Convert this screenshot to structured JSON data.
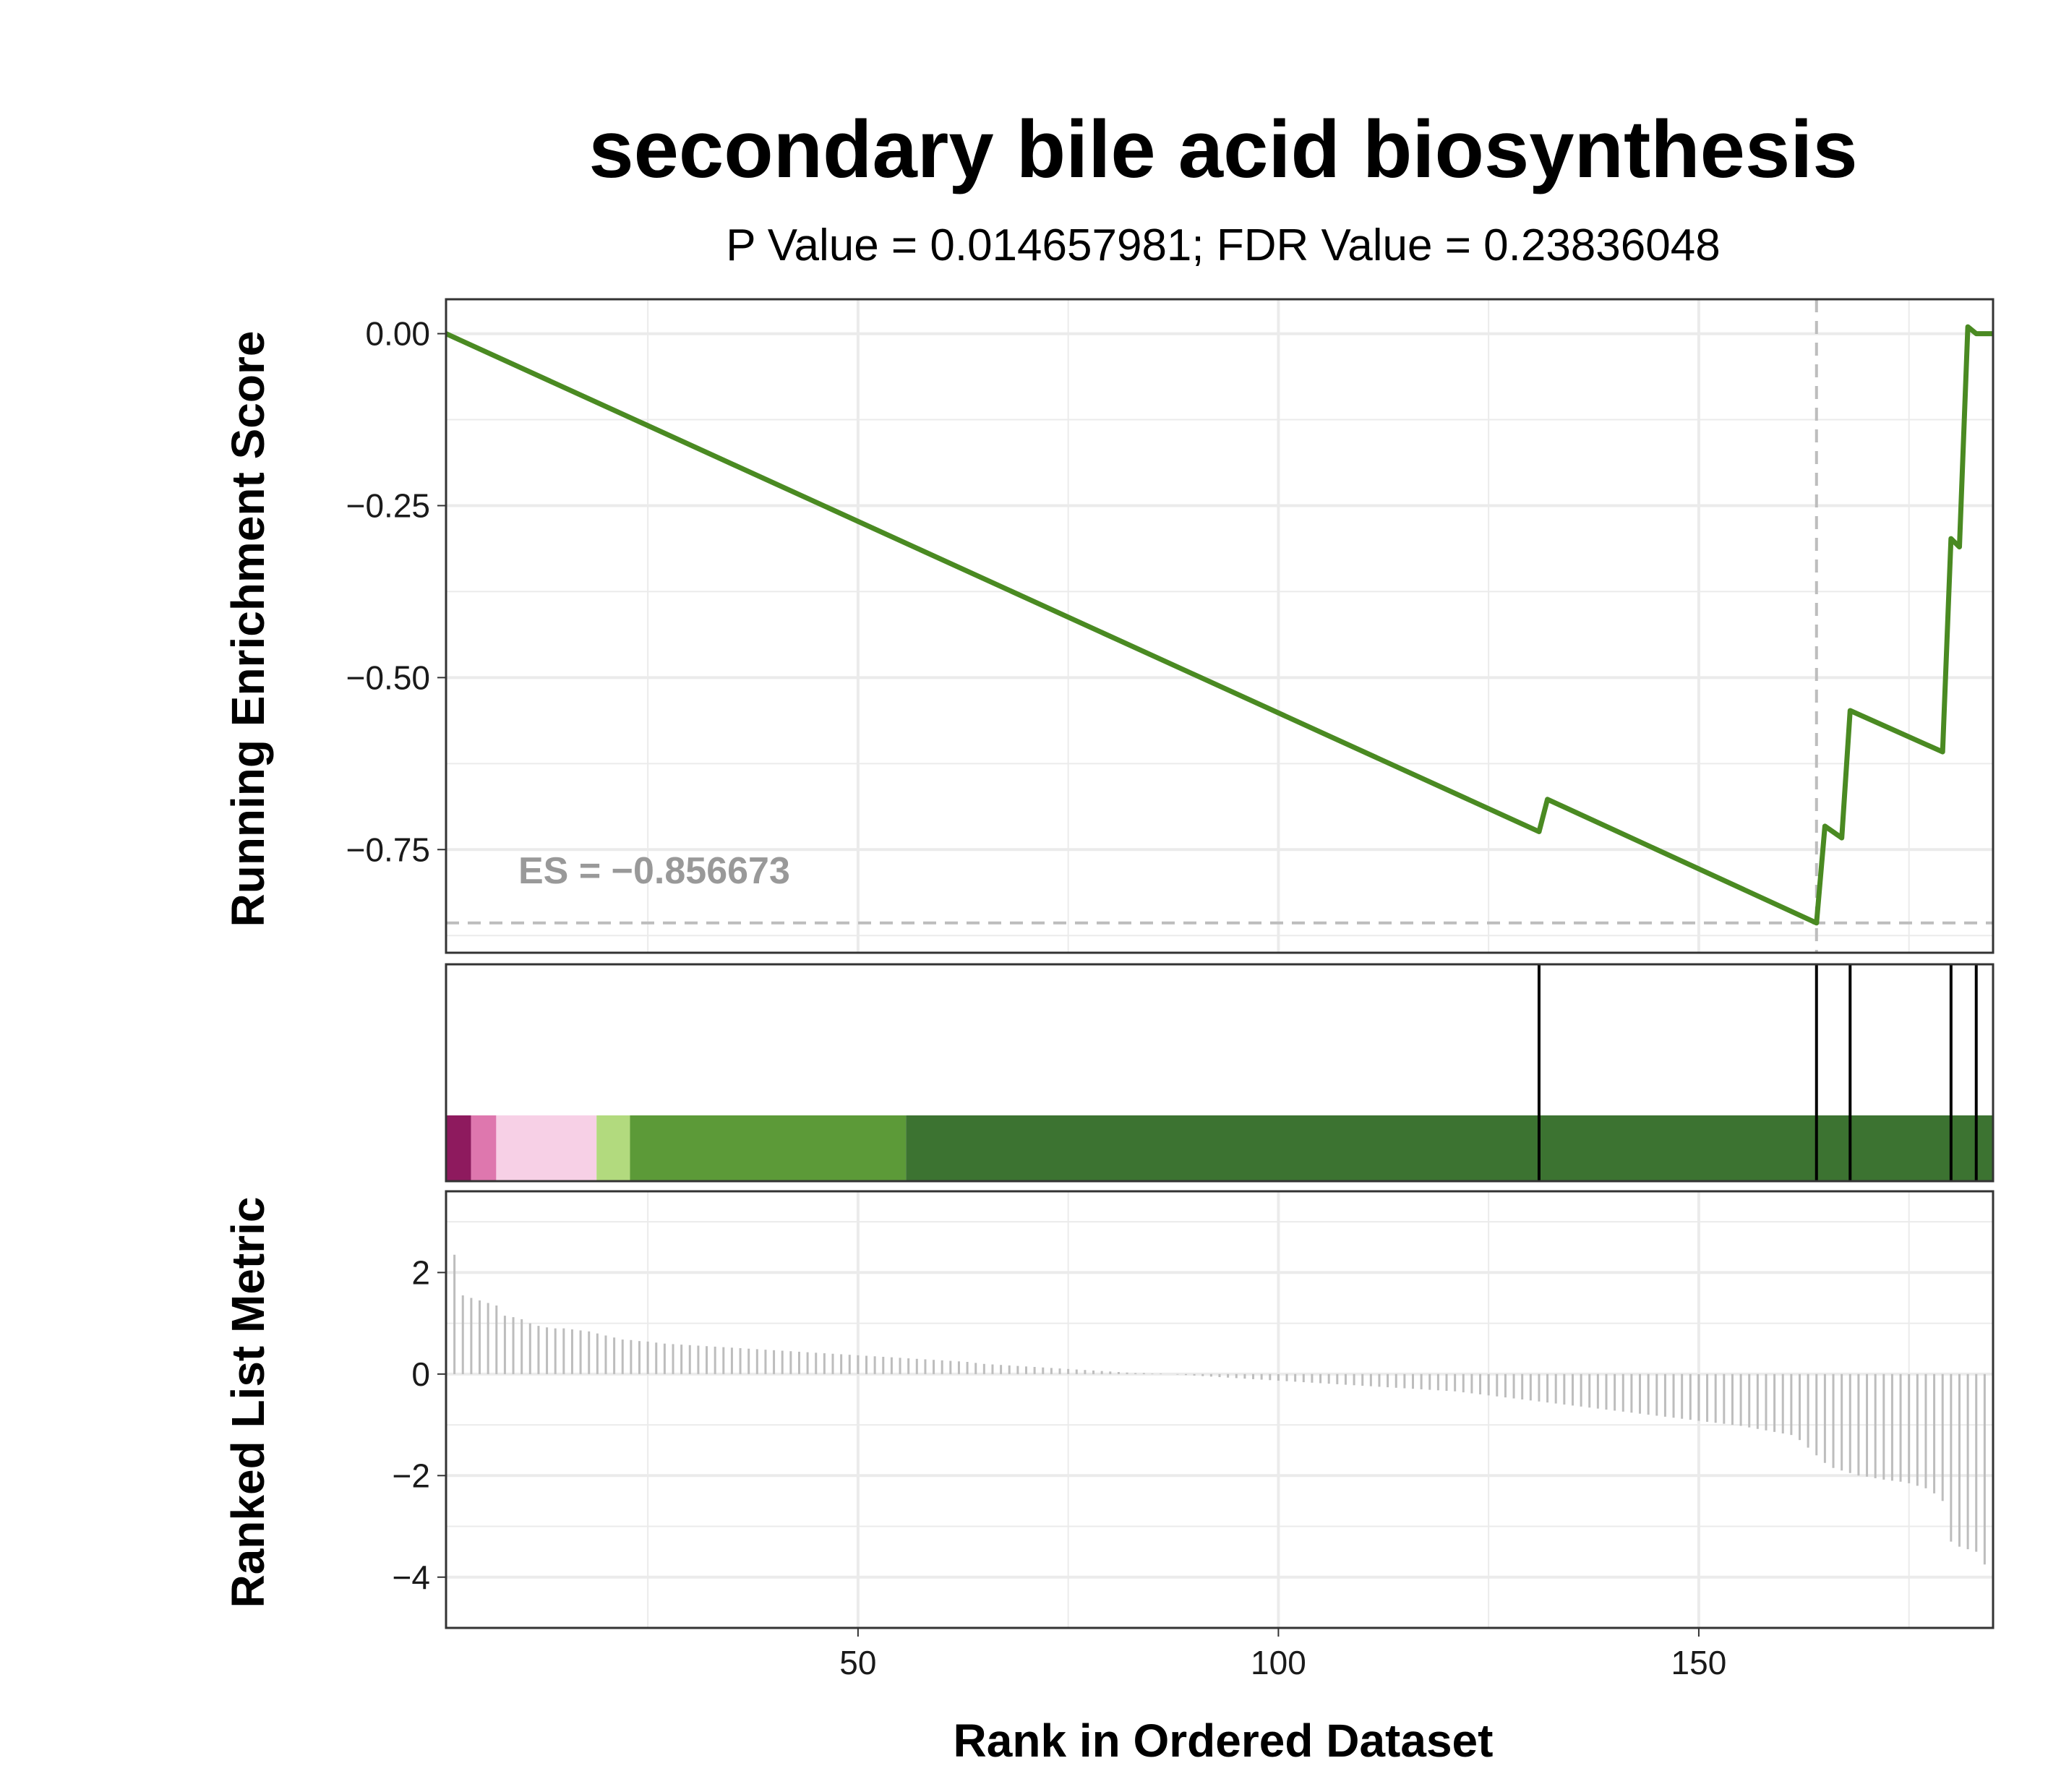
{
  "chart_data": {
    "type": "line",
    "title": "secondary bile acid biosynthesis",
    "subtitle": "P Value = 0.014657981; FDR Value = 0.23836048",
    "xlabel": "Rank in Ordered Dataset",
    "panels": {
      "running_score": {
        "ylabel": "Running Enrichment Score",
        "ylim": [
          -0.9,
          0.05
        ],
        "yticks": [
          0.0,
          -0.25,
          -0.5,
          -0.75
        ],
        "ytick_labels": [
          "0.00",
          "−0.25",
          "−0.50",
          "−0.75"
        ],
        "es_label": "ES = −0.856673",
        "es_value": -0.856673,
        "peak_rank": 164,
        "line_color": "#4a8a22",
        "series": [
          {
            "x": [
              1,
              131,
              132,
              164,
              165,
              167,
              168,
              179,
              180,
              181,
              182,
              183,
              185
            ],
            "y": [
              0.0,
              -0.724,
              -0.677,
              -0.856673,
              -0.716,
              -0.733,
              -0.548,
              -0.608,
              -0.298,
              -0.31,
              0.01,
              0.0,
              0.0
            ]
          }
        ]
      },
      "hits": {
        "positions": [
          131,
          164,
          168,
          180,
          183
        ],
        "color_bands": [
          {
            "from": 0,
            "to": 3,
            "color": "#8e1a5e"
          },
          {
            "from": 3,
            "to": 6,
            "color": "#de77ae"
          },
          {
            "from": 6,
            "to": 18,
            "color": "#f7d0e6"
          },
          {
            "from": 18,
            "to": 22,
            "color": "#b2da7e"
          },
          {
            "from": 22,
            "to": 55,
            "color": "#5c9a38"
          },
          {
            "from": 55,
            "to": 185,
            "color": "#3c7331"
          }
        ]
      },
      "ranked_metric": {
        "ylabel": "Ranked List Metric",
        "ylim": [
          -5,
          3.6
        ],
        "yticks": [
          2,
          0,
          -2,
          -4
        ],
        "ytick_labels": [
          "2",
          "0",
          "−2",
          "−4"
        ],
        "bar_color": "#bdbdbd",
        "values": [
          3.05,
          2.35,
          1.55,
          1.5,
          1.45,
          1.4,
          1.35,
          1.15,
          1.12,
          1.08,
          1.0,
          0.95,
          0.92,
          0.9,
          0.9,
          0.88,
          0.86,
          0.84,
          0.8,
          0.76,
          0.72,
          0.68,
          0.67,
          0.65,
          0.64,
          0.62,
          0.6,
          0.59,
          0.58,
          0.57,
          0.56,
          0.55,
          0.54,
          0.53,
          0.52,
          0.51,
          0.5,
          0.49,
          0.48,
          0.47,
          0.46,
          0.45,
          0.44,
          0.43,
          0.42,
          0.41,
          0.4,
          0.39,
          0.38,
          0.37,
          0.36,
          0.35,
          0.34,
          0.33,
          0.32,
          0.31,
          0.3,
          0.29,
          0.28,
          0.27,
          0.26,
          0.25,
          0.24,
          0.22,
          0.2,
          0.19,
          0.18,
          0.17,
          0.16,
          0.15,
          0.14,
          0.13,
          0.12,
          0.11,
          0.1,
          0.09,
          0.08,
          0.07,
          0.06,
          0.05,
          0.04,
          0.03,
          0.02,
          0.02,
          0.01,
          0.01,
          0.0,
          -0.01,
          -0.02,
          -0.03,
          -0.04,
          -0.05,
          -0.06,
          -0.07,
          -0.08,
          -0.09,
          -0.1,
          -0.11,
          -0.12,
          -0.13,
          -0.14,
          -0.15,
          -0.16,
          -0.17,
          -0.18,
          -0.19,
          -0.2,
          -0.21,
          -0.22,
          -0.23,
          -0.24,
          -0.25,
          -0.26,
          -0.27,
          -0.28,
          -0.29,
          -0.3,
          -0.31,
          -0.32,
          -0.33,
          -0.34,
          -0.36,
          -0.38,
          -0.4,
          -0.42,
          -0.44,
          -0.46,
          -0.48,
          -0.5,
          -0.52,
          -0.54,
          -0.56,
          -0.58,
          -0.6,
          -0.62,
          -0.64,
          -0.66,
          -0.68,
          -0.7,
          -0.72,
          -0.74,
          -0.76,
          -0.78,
          -0.8,
          -0.82,
          -0.84,
          -0.86,
          -0.88,
          -0.9,
          -0.92,
          -0.94,
          -0.96,
          -0.98,
          -1.0,
          -1.02,
          -1.05,
          -1.08,
          -1.11,
          -1.14,
          -1.17,
          -1.2,
          -1.3,
          -1.45,
          -1.6,
          -1.75,
          -1.85,
          -1.9,
          -1.95,
          -2.0,
          -2.02,
          -2.05,
          -2.08,
          -2.1,
          -2.12,
          -2.15,
          -2.2,
          -2.25,
          -2.35,
          -2.5,
          -3.3,
          -3.4,
          -3.45,
          -3.5,
          -3.75
        ]
      }
    },
    "xlim": [
      1,
      185
    ],
    "xticks": [
      50,
      100,
      150
    ],
    "xtick_labels": [
      "50",
      "100",
      "150"
    ],
    "grid": true
  }
}
